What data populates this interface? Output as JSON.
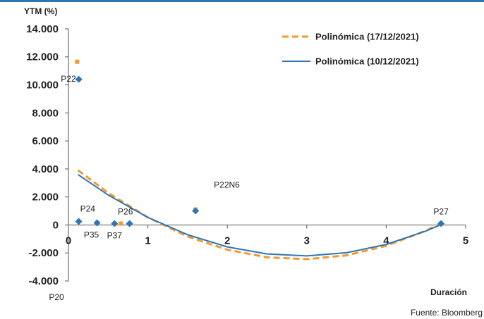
{
  "chart_data": {
    "type": "scatter",
    "y_label": "YTM (%)",
    "x_label": "Duración",
    "source": "Fuente: Bloomberg",
    "xlim": [
      0,
      5
    ],
    "xticks": [
      0,
      1,
      2,
      3,
      4,
      5
    ],
    "ylim": [
      -4000,
      14000
    ],
    "yticks": [
      {
        "value": -4000,
        "label": "-4.000"
      },
      {
        "value": -2000,
        "label": "-2.000"
      },
      0,
      {
        "value": 2000,
        "label": "2.000"
      },
      {
        "value": 4000,
        "label": "4.000"
      },
      {
        "value": 6000,
        "label": "6.000"
      },
      {
        "value": 8000,
        "label": "8.000"
      },
      {
        "value": 10000,
        "label": "10.000"
      },
      {
        "value": 12000,
        "label": "12.000"
      },
      {
        "value": 14000,
        "label": "14.000"
      }
    ],
    "grid": false,
    "legend": "top-right",
    "series": [
      {
        "name": "Polinómica (17/12/2021)",
        "kind": "line",
        "dashed": true,
        "color": "#f39a2e",
        "x": [
          0.12,
          0.5,
          1,
          1.5,
          2,
          2.5,
          3,
          3.5,
          4,
          4.5,
          4.7
        ],
        "values": [
          3909,
          2297,
          535,
          -821,
          -1769,
          -2310,
          -2444,
          -2172,
          -1492,
          -405,
          143
        ]
      },
      {
        "name": "Polinómica (10/12/2021)",
        "kind": "line",
        "dashed": false,
        "color": "#2e75b6",
        "x": [
          0.12,
          0.5,
          1,
          1.5,
          2,
          2.5,
          3,
          3.5,
          4,
          4.5,
          4.7
        ],
        "values": [
          3600,
          2139,
          538,
          -697,
          -1567,
          -2072,
          -2211,
          -1984,
          -1392,
          -434,
          51
        ]
      },
      {
        "kind": "points",
        "marker": "square",
        "color": "#f39a2e",
        "x": [
          0.11,
          0.66,
          1.6,
          4.69
        ],
        "values": [
          11650,
          100,
          1100,
          100
        ]
      },
      {
        "kind": "points",
        "marker": "diamond",
        "color": "#2e75b6",
        "x": [
          0.13,
          0.13,
          0.36,
          0.58,
          0.77,
          1.6,
          4.69
        ],
        "values": [
          10400,
          250,
          150,
          100,
          100,
          1000,
          100
        ],
        "labels": [
          "P22",
          "P24",
          "P35",
          "P37",
          "P26",
          "P22N6",
          "P27"
        ]
      }
    ],
    "annotations": [
      "P20"
    ]
  }
}
